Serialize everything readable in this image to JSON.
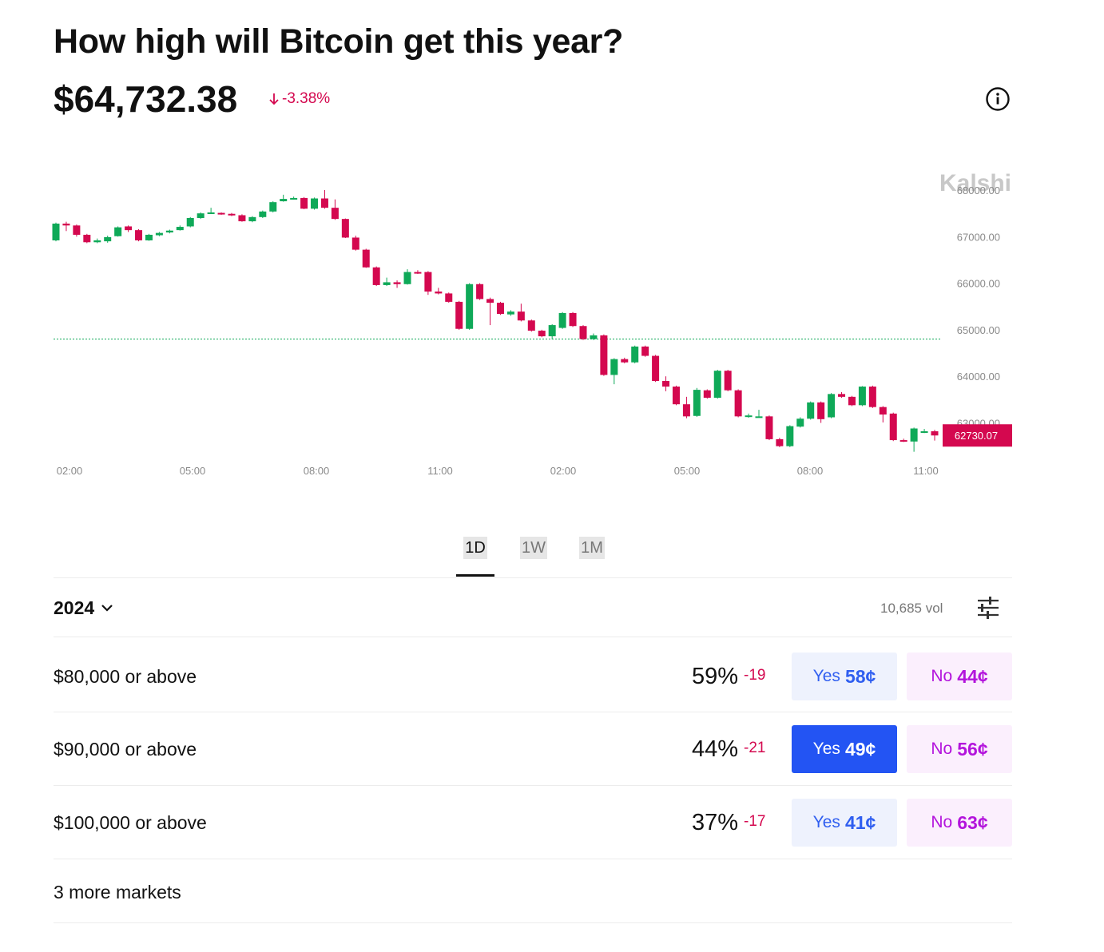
{
  "header": {
    "title": "How high will Bitcoin get this year?",
    "price": "$64,732.38",
    "change": "-3.38%"
  },
  "chart": {
    "watermark": "Kalshi",
    "current_label": "62730.07",
    "reference_level": 64800,
    "colors": {
      "up": "#0fa958",
      "down": "#d4084f",
      "reference": "#0fa958",
      "axis_text": "#8a8a8a",
      "watermark": "#c8c8c8"
    },
    "y_ticks": [
      "68000.00",
      "67000.00",
      "66000.00",
      "65000.00",
      "64000.00",
      "63000.00"
    ],
    "x_ticks": [
      "02:00",
      "05:00",
      "08:00",
      "11:00",
      "02:00",
      "05:00",
      "08:00",
      "11:00"
    ]
  },
  "chart_data": {
    "type": "candlestick",
    "ylim": [
      62400,
      68400
    ],
    "candles": [
      {
        "o": 66920,
        "c": 67280,
        "h": 67300,
        "l": 66900
      },
      {
        "o": 67280,
        "c": 67240,
        "h": 67320,
        "l": 67120
      },
      {
        "o": 67240,
        "c": 67040,
        "h": 67260,
        "l": 67000
      },
      {
        "o": 67040,
        "c": 66880,
        "h": 67060,
        "l": 66860
      },
      {
        "o": 66880,
        "c": 66920,
        "h": 66960,
        "l": 66860
      },
      {
        "o": 66900,
        "c": 66990,
        "h": 67020,
        "l": 66870
      },
      {
        "o": 67010,
        "c": 67200,
        "h": 67220,
        "l": 67000
      },
      {
        "o": 67220,
        "c": 67140,
        "h": 67240,
        "l": 67100
      },
      {
        "o": 67140,
        "c": 66920,
        "h": 67160,
        "l": 66900
      },
      {
        "o": 66920,
        "c": 67040,
        "h": 67060,
        "l": 66910
      },
      {
        "o": 67030,
        "c": 67080,
        "h": 67100,
        "l": 67010
      },
      {
        "o": 67090,
        "c": 67130,
        "h": 67150,
        "l": 67070
      },
      {
        "o": 67140,
        "c": 67210,
        "h": 67240,
        "l": 67130
      },
      {
        "o": 67220,
        "c": 67400,
        "h": 67420,
        "l": 67200
      },
      {
        "o": 67400,
        "c": 67500,
        "h": 67520,
        "l": 67380
      },
      {
        "o": 67500,
        "c": 67520,
        "h": 67620,
        "l": 67490
      },
      {
        "o": 67510,
        "c": 67490,
        "h": 67520,
        "l": 67470
      },
      {
        "o": 67490,
        "c": 67460,
        "h": 67510,
        "l": 67440
      },
      {
        "o": 67460,
        "c": 67330,
        "h": 67480,
        "l": 67320
      },
      {
        "o": 67330,
        "c": 67420,
        "h": 67440,
        "l": 67310
      },
      {
        "o": 67420,
        "c": 67540,
        "h": 67560,
        "l": 67400
      },
      {
        "o": 67540,
        "c": 67740,
        "h": 67760,
        "l": 67520
      },
      {
        "o": 67760,
        "c": 67810,
        "h": 67900,
        "l": 67750
      },
      {
        "o": 67810,
        "c": 67830,
        "h": 67860,
        "l": 67800
      },
      {
        "o": 67830,
        "c": 67600,
        "h": 67850,
        "l": 67590
      },
      {
        "o": 67600,
        "c": 67820,
        "h": 67840,
        "l": 67580
      },
      {
        "o": 67820,
        "c": 67620,
        "h": 68000,
        "l": 67600
      },
      {
        "o": 67620,
        "c": 67380,
        "h": 67800,
        "l": 67360
      },
      {
        "o": 67380,
        "c": 66980,
        "h": 67390,
        "l": 66970
      },
      {
        "o": 66980,
        "c": 66720,
        "h": 67020,
        "l": 66700
      },
      {
        "o": 66720,
        "c": 66340,
        "h": 66740,
        "l": 66330
      },
      {
        "o": 66340,
        "c": 65960,
        "h": 66360,
        "l": 65940
      },
      {
        "o": 65960,
        "c": 66020,
        "h": 66120,
        "l": 65940
      },
      {
        "o": 66020,
        "c": 65980,
        "h": 66060,
        "l": 65900
      },
      {
        "o": 65980,
        "c": 66240,
        "h": 66300,
        "l": 65970
      },
      {
        "o": 66240,
        "c": 66220,
        "h": 66280,
        "l": 66200
      },
      {
        "o": 66240,
        "c": 65820,
        "h": 66260,
        "l": 65750
      },
      {
        "o": 65820,
        "c": 65780,
        "h": 65900,
        "l": 65760
      },
      {
        "o": 65780,
        "c": 65600,
        "h": 65800,
        "l": 65580
      },
      {
        "o": 65600,
        "c": 65020,
        "h": 65620,
        "l": 65000
      },
      {
        "o": 65020,
        "c": 65980,
        "h": 66000,
        "l": 65000
      },
      {
        "o": 65980,
        "c": 65660,
        "h": 66000,
        "l": 65640
      },
      {
        "o": 65660,
        "c": 65580,
        "h": 65690,
        "l": 65100
      },
      {
        "o": 65580,
        "c": 65340,
        "h": 65600,
        "l": 65320
      },
      {
        "o": 65330,
        "c": 65390,
        "h": 65420,
        "l": 65300
      },
      {
        "o": 65390,
        "c": 65200,
        "h": 65560,
        "l": 65180
      },
      {
        "o": 65200,
        "c": 64980,
        "h": 65220,
        "l": 64960
      },
      {
        "o": 64980,
        "c": 64860,
        "h": 65000,
        "l": 64840
      },
      {
        "o": 64860,
        "c": 65100,
        "h": 65120,
        "l": 64790
      },
      {
        "o": 65040,
        "c": 65360,
        "h": 65380,
        "l": 65020
      },
      {
        "o": 65360,
        "c": 65080,
        "h": 65380,
        "l": 65060
      },
      {
        "o": 65080,
        "c": 64800,
        "h": 65100,
        "l": 64780
      },
      {
        "o": 64800,
        "c": 64880,
        "h": 64920,
        "l": 64780
      },
      {
        "o": 64880,
        "c": 64030,
        "h": 64900,
        "l": 64010
      },
      {
        "o": 64030,
        "c": 64370,
        "h": 64390,
        "l": 63830
      },
      {
        "o": 64370,
        "c": 64300,
        "h": 64400,
        "l": 64280
      },
      {
        "o": 64300,
        "c": 64640,
        "h": 64660,
        "l": 64280
      },
      {
        "o": 64640,
        "c": 64440,
        "h": 64660,
        "l": 64420
      },
      {
        "o": 64440,
        "c": 63900,
        "h": 64460,
        "l": 63880
      },
      {
        "o": 63900,
        "c": 63780,
        "h": 64000,
        "l": 63680
      },
      {
        "o": 63780,
        "c": 63400,
        "h": 63800,
        "l": 63380
      },
      {
        "o": 63400,
        "c": 63140,
        "h": 63560,
        "l": 63100
      },
      {
        "o": 63150,
        "c": 63710,
        "h": 63750,
        "l": 63130
      },
      {
        "o": 63700,
        "c": 63540,
        "h": 63720,
        "l": 63520
      },
      {
        "o": 63540,
        "c": 64120,
        "h": 64140,
        "l": 63520
      },
      {
        "o": 64120,
        "c": 63700,
        "h": 64140,
        "l": 63680
      },
      {
        "o": 63700,
        "c": 63140,
        "h": 63720,
        "l": 63120
      },
      {
        "o": 63130,
        "c": 63160,
        "h": 63200,
        "l": 63110
      },
      {
        "o": 63140,
        "c": 63140,
        "h": 63280,
        "l": 63120
      },
      {
        "o": 63140,
        "c": 62650,
        "h": 63160,
        "l": 62630
      },
      {
        "o": 62650,
        "c": 62500,
        "h": 62680,
        "l": 62480
      },
      {
        "o": 62500,
        "c": 62930,
        "h": 62950,
        "l": 62480
      },
      {
        "o": 62920,
        "c": 63090,
        "h": 63120,
        "l": 62900
      },
      {
        "o": 63090,
        "c": 63440,
        "h": 63460,
        "l": 63070
      },
      {
        "o": 63440,
        "c": 63080,
        "h": 63460,
        "l": 63000
      },
      {
        "o": 63120,
        "c": 63620,
        "h": 63640,
        "l": 63100
      },
      {
        "o": 63620,
        "c": 63560,
        "h": 63660,
        "l": 63540
      },
      {
        "o": 63560,
        "c": 63380,
        "h": 63580,
        "l": 63360
      },
      {
        "o": 63380,
        "c": 63780,
        "h": 63790,
        "l": 63360
      },
      {
        "o": 63780,
        "c": 63340,
        "h": 63800,
        "l": 63320
      },
      {
        "o": 63340,
        "c": 63180,
        "h": 63360,
        "l": 63010
      },
      {
        "o": 63200,
        "c": 62630,
        "h": 63220,
        "l": 62610
      },
      {
        "o": 62630,
        "c": 62610,
        "h": 62660,
        "l": 62590
      },
      {
        "o": 62600,
        "c": 62880,
        "h": 62900,
        "l": 62380
      },
      {
        "o": 62800,
        "c": 62820,
        "h": 62870,
        "l": 62780
      },
      {
        "o": 62820,
        "c": 62730,
        "h": 62850,
        "l": 62620
      }
    ]
  },
  "tabs": [
    {
      "label": "1D",
      "active": true
    },
    {
      "label": "1W",
      "active": false
    },
    {
      "label": "1M",
      "active": false
    }
  ],
  "markets_header": {
    "year": "2024",
    "volume": "10,685 vol"
  },
  "markets": [
    {
      "label": "$80,000 or above",
      "pct": "59%",
      "delta": "-19",
      "yes_label": "Yes",
      "yes_price": "58¢",
      "no_label": "No",
      "no_price": "44¢",
      "yes_selected": false
    },
    {
      "label": "$90,000 or above",
      "pct": "44%",
      "delta": "-21",
      "yes_label": "Yes",
      "yes_price": "49¢",
      "no_label": "No",
      "no_price": "56¢",
      "yes_selected": true
    },
    {
      "label": "$100,000 or above",
      "pct": "37%",
      "delta": "-17",
      "yes_label": "Yes",
      "yes_price": "41¢",
      "no_label": "No",
      "no_price": "63¢",
      "yes_selected": false
    }
  ],
  "more_markets": "3 more markets"
}
